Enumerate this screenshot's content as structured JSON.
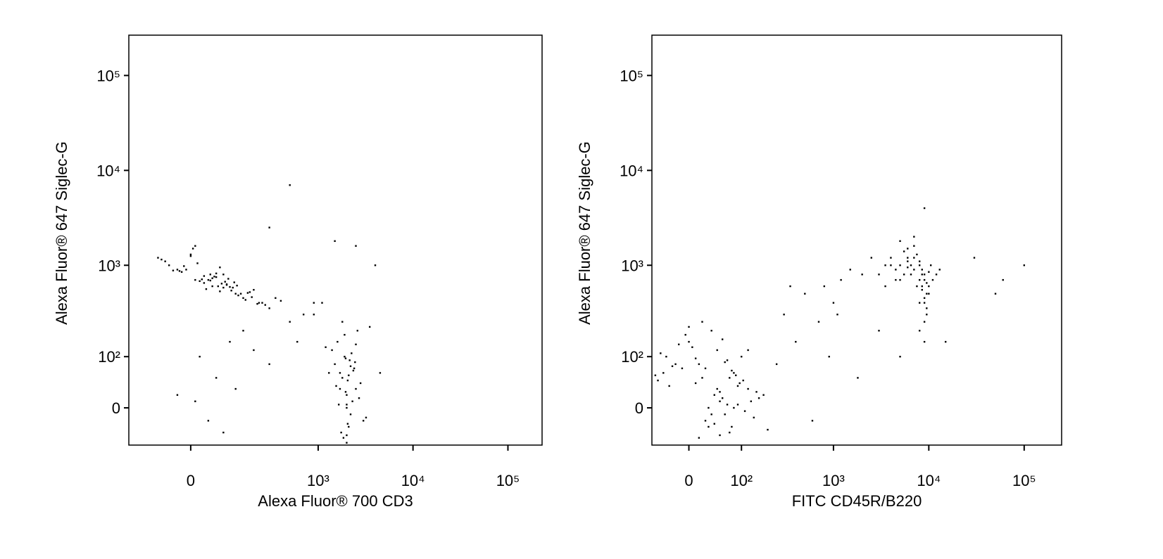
{
  "chart_data": [
    {
      "type": "scatter",
      "scale": "biexponential",
      "color": "#000000",
      "xlabel": "Alexa Fluor® 700 CD3",
      "ylabel": "Alexa Fluor® 647 Siglec-G",
      "xlim": [
        -194,
        229000
      ],
      "ylim": [
        -65,
        266000
      ],
      "xticks": [
        0,
        {
          "value": 1000,
          "label": "10³"
        },
        {
          "value": 10000,
          "label": "10⁴"
        },
        {
          "value": 100000,
          "label": "10⁵"
        }
      ],
      "yticks": [
        0,
        {
          "value": 100,
          "label": "10²"
        },
        {
          "value": 1000,
          "label": "10³"
        },
        {
          "value": 10000,
          "label": "10⁴"
        },
        {
          "value": 100000,
          "label": "10⁵"
        }
      ],
      "x": [
        10,
        50,
        -30,
        120,
        80,
        200,
        -60,
        30,
        150,
        60,
        0,
        90,
        250,
        -20,
        40,
        110,
        70,
        180,
        -50,
        20,
        130,
        300,
        5,
        65,
        95,
        -10,
        160,
        45,
        220,
        75,
        -80,
        35,
        140,
        85,
        15,
        400,
        55,
        -40,
        100,
        190,
        25,
        70,
        -15,
        125,
        60,
        270,
        -70,
        45,
        105,
        10,
        350,
        90,
        30,
        -25,
        170,
        50,
        80,
        230,
        0,
        115,
        20,
        60,
        100,
        -30,
        150,
        40,
        300,
        500,
        700,
        80,
        10,
        200,
        600,
        900,
        120,
        2000,
        1800,
        2200,
        1500,
        2500,
        1900,
        2100,
        1700,
        2300,
        1600,
        2800,
        1400,
        2000,
        2400,
        1850,
        2150,
        1950,
        3000,
        1300,
        2600,
        2050,
        1750,
        2250,
        1650,
        2350,
        1900,
        2000,
        2700,
        1550,
        2450,
        1200,
        3200,
        2100,
        1800,
        2000,
        2200,
        1700,
        2500,
        1950,
        2050,
        900,
        3500,
        4500,
        1100,
        2000,
        500,
        4000,
        2500,
        300,
        1500
      ],
      "values": [
        700,
        600,
        900,
        500,
        800,
        550,
        1100,
        650,
        450,
        750,
        1300,
        620,
        400,
        850,
        700,
        580,
        950,
        520,
        1000,
        680,
        480,
        350,
        1500,
        600,
        720,
        900,
        430,
        800,
        390,
        640,
        1200,
        560,
        500,
        670,
        1050,
        420,
        760,
        880,
        590,
        460,
        710,
        530,
        980,
        610,
        820,
        380,
        1150,
        690,
        540,
        1600,
        450,
        630,
        770,
        870,
        510,
        730,
        580,
        400,
        1250,
        660,
        100,
        50,
        150,
        20,
        200,
        -20,
        80,
        250,
        300,
        -40,
        10,
        120,
        150,
        400,
        30,
        20,
        50,
        -10,
        80,
        30,
        100,
        -30,
        60,
        10,
        150,
        40,
        120,
        0,
        70,
        -50,
        90,
        25,
        -20,
        60,
        200,
        45,
        -40,
        110,
        5,
        65,
        180,
        -60,
        15,
        35,
        85,
        130,
        -15,
        55,
        250,
        -45,
        75,
        30,
        140,
        95,
        -25,
        300,
        220,
        60,
        400,
        5,
        7000,
        1000,
        1600,
        2500,
        1800
      ]
    },
    {
      "type": "scatter",
      "scale": "biexponential",
      "color": "#000000",
      "xlabel": "FITC CD45R/B220",
      "ylabel": "Alexa Fluor® 647 Siglec-G",
      "xlim": [
        -62,
        247000
      ],
      "ylim": [
        -65,
        266000
      ],
      "xticks": [
        0,
        {
          "value": 100,
          "label": "10²"
        },
        {
          "value": 1000,
          "label": "10³"
        },
        {
          "value": 10000,
          "label": "10⁴"
        },
        {
          "value": 100000,
          "label": "10⁵"
        }
      ],
      "yticks": [
        0,
        {
          "value": 100,
          "label": "10²"
        },
        {
          "value": 1000,
          "label": "10³"
        },
        {
          "value": 10000,
          "label": "10⁴"
        },
        {
          "value": 100000,
          "label": "10⁵"
        }
      ],
      "x": [
        40,
        20,
        60,
        -20,
        80,
        10,
        100,
        30,
        -40,
        50,
        120,
        0,
        70,
        -10,
        90,
        45,
        150,
        25,
        -50,
        65,
        35,
        55,
        15,
        85,
        -30,
        110,
        5,
        75,
        130,
        -5,
        40,
        60,
        95,
        -25,
        180,
        20,
        50,
        -45,
        70,
        30,
        10,
        140,
        80,
        -15,
        45,
        200,
        25,
        65,
        -35,
        105,
        55,
        35,
        90,
        0,
        160,
        15,
        75,
        -55,
        120,
        50,
        300,
        500,
        800,
        1200,
        1500,
        2000,
        400,
        700,
        1000,
        2500,
        250,
        600,
        900,
        1800,
        3000,
        350,
        1100,
        5000,
        15000,
        60000,
        5000,
        7000,
        9000,
        4000,
        6000,
        8000,
        10000,
        3500,
        5500,
        7500,
        9500,
        4500,
        6500,
        8500,
        11000,
        3000,
        6000,
        8000,
        9000,
        7000,
        5000,
        8500,
        9500,
        10000,
        6500,
        4000,
        7500,
        12000,
        5500,
        9000,
        8000,
        9000,
        9500,
        7000,
        8500,
        10000,
        6000,
        4500,
        8000,
        9000,
        13000,
        3500,
        7000,
        9500,
        8500,
        6000,
        5000,
        10500,
        8000,
        9000,
        9000,
        30000,
        100000,
        50000
      ],
      "values": [
        20,
        50,
        -10,
        80,
        0,
        40,
        100,
        -30,
        60,
        10,
        30,
        150,
        -40,
        70,
        5,
        120,
        25,
        -20,
        45,
        90,
        200,
        15,
        -50,
        55,
        35,
        -5,
        130,
        65,
        10,
        180,
        -25,
        85,
        40,
        75,
        20,
        250,
        -45,
        110,
        50,
        0,
        95,
        -15,
        60,
        140,
        30,
        -35,
        70,
        5,
        100,
        45,
        160,
        -10,
        35,
        220,
        15,
        80,
        -30,
        55,
        120,
        25,
        300,
        500,
        600,
        700,
        900,
        800,
        150,
        250,
        400,
        1200,
        80,
        -20,
        100,
        50,
        200,
        600,
        300,
        100,
        150,
        700,
        1000,
        900,
        800,
        1200,
        1100,
        700,
        600,
        1000,
        800,
        1300,
        500,
        900,
        1000,
        600,
        700,
        800,
        1500,
        1100,
        400,
        1200,
        700,
        900,
        350,
        500,
        800,
        1000,
        600,
        800,
        1400,
        450,
        1000,
        700,
        300,
        1600,
        550,
        850,
        1200,
        700,
        400,
        250,
        900,
        600,
        2000,
        650,
        800,
        950,
        1800,
        1000,
        200,
        150,
        4000,
        1200,
        1000,
        500
      ]
    }
  ]
}
